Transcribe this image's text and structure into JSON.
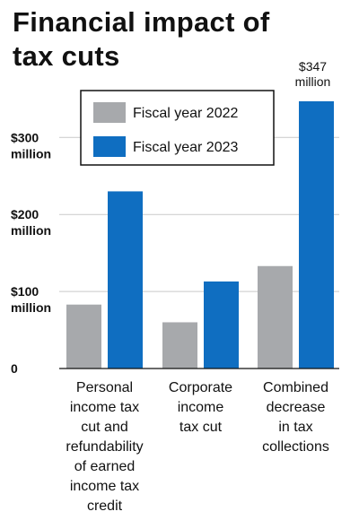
{
  "title": "Financial impact of tax cuts",
  "chart_data": {
    "type": "bar",
    "title": "Financial impact of tax cuts",
    "categories": [
      [
        "Personal",
        "income tax",
        "cut and",
        "refundability",
        "of earned",
        "income tax",
        "credit"
      ],
      [
        "Corporate",
        "income",
        "tax cut"
      ],
      [
        "Combined",
        "decrease",
        "in tax",
        "collections"
      ]
    ],
    "series": [
      {
        "name": "Fiscal year 2022",
        "color": "#a7a9ac",
        "values": [
          83,
          60,
          133
        ]
      },
      {
        "name": "Fiscal year 2023",
        "color": "#0f6ec1",
        "values": [
          230,
          113,
          347
        ]
      }
    ],
    "ylim": [
      0,
      347
    ],
    "yticks": [
      {
        "value": 0,
        "lines": [
          "0"
        ]
      },
      {
        "value": 100,
        "lines": [
          "$100",
          "million"
        ]
      },
      {
        "value": 200,
        "lines": [
          "$200",
          "million"
        ]
      },
      {
        "value": 300,
        "lines": [
          "$300",
          "million"
        ]
      }
    ],
    "annotations": [
      {
        "category": 2,
        "series": 1,
        "lines": [
          "$347",
          "million"
        ]
      }
    ],
    "grid": true,
    "legend": "top"
  }
}
